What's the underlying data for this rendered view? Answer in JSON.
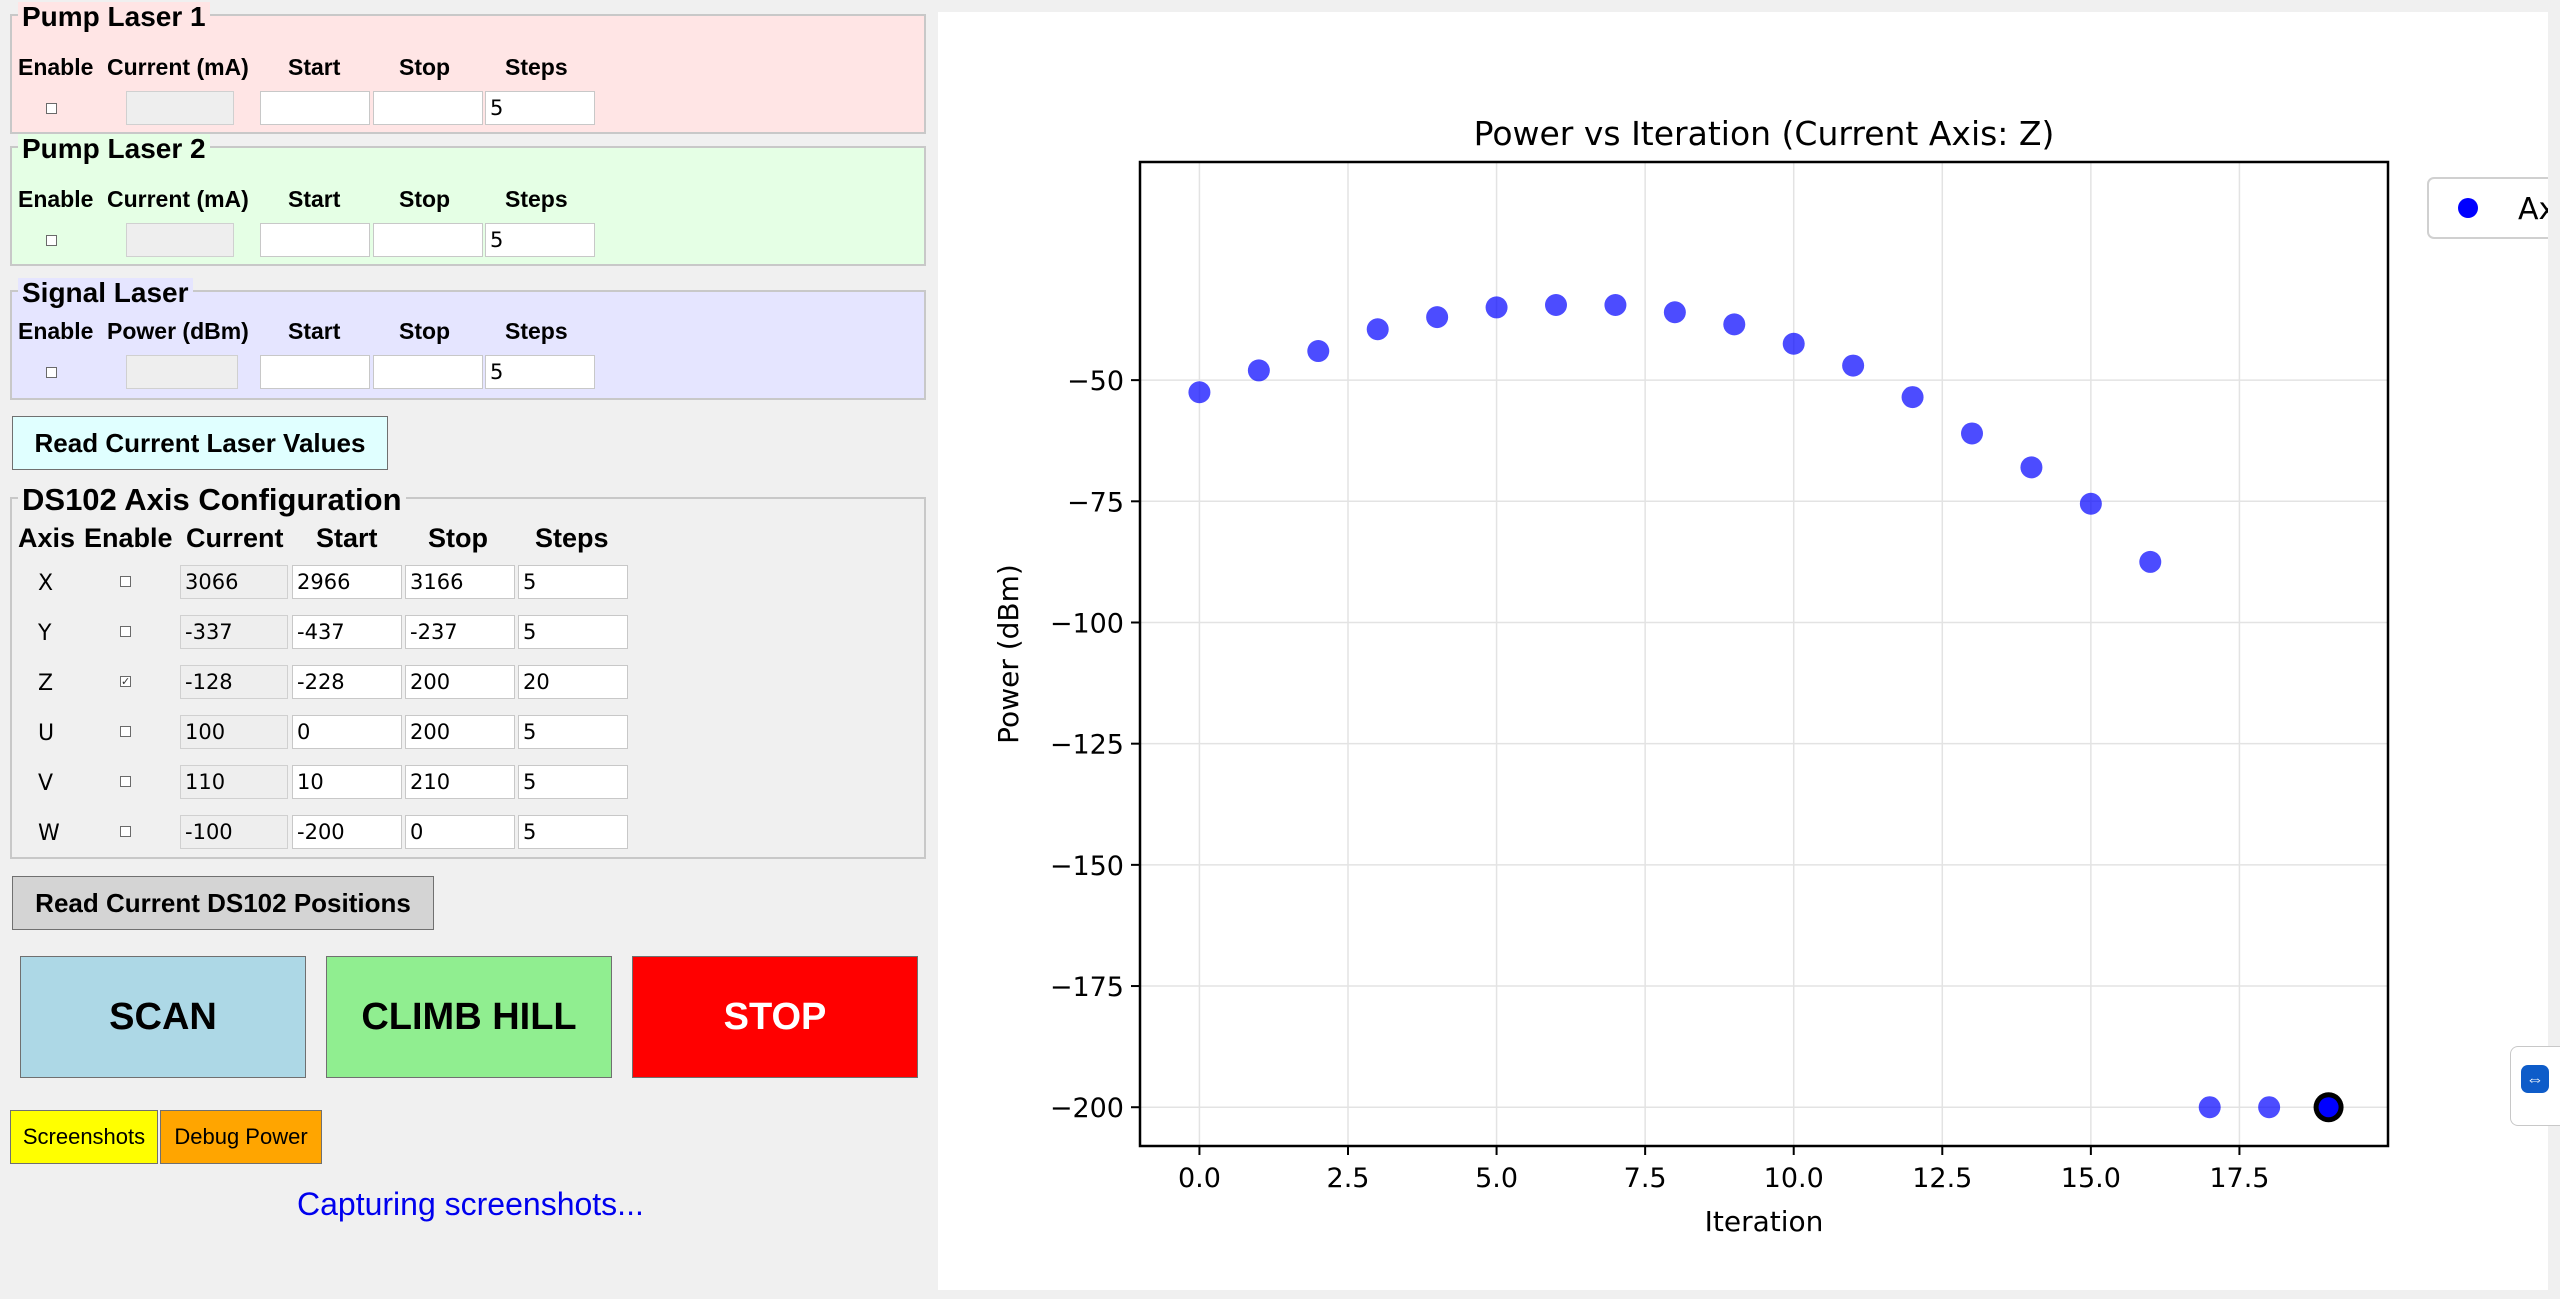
{
  "pump1": {
    "title": "Pump Laser 1",
    "headers": [
      "Enable",
      "Current (mA)",
      "Start",
      "Stop",
      "Steps"
    ],
    "enabled": false,
    "current": "",
    "start": "",
    "stop": "",
    "steps": "5",
    "bg": "#ffe5e5"
  },
  "pump2": {
    "title": "Pump Laser 2",
    "headers": [
      "Enable",
      "Current (mA)",
      "Start",
      "Stop",
      "Steps"
    ],
    "enabled": false,
    "current": "",
    "start": "",
    "stop": "",
    "steps": "5",
    "bg": "#e5ffe5"
  },
  "signal": {
    "title": "Signal Laser",
    "headers": [
      "Enable",
      "Power (dBm)",
      "Start",
      "Stop",
      "Steps"
    ],
    "enabled": false,
    "current": "",
    "start": "",
    "stop": "",
    "steps": "5",
    "bg": "#e5e5ff"
  },
  "read_laser_button": "Read Current Laser Values",
  "ds102": {
    "title": "DS102 Axis Configuration",
    "headers": [
      "Axis",
      "Enable",
      "Current",
      "Start",
      "Stop",
      "Steps"
    ],
    "rows": [
      {
        "axis": "X",
        "enabled": false,
        "current": "3066",
        "start": "2966",
        "stop": "3166",
        "steps": "5"
      },
      {
        "axis": "Y",
        "enabled": false,
        "current": "-337",
        "start": "-437",
        "stop": "-237",
        "steps": "5"
      },
      {
        "axis": "Z",
        "enabled": true,
        "current": "-128",
        "start": "-228",
        "stop": "200",
        "steps": "20"
      },
      {
        "axis": "U",
        "enabled": false,
        "current": "100",
        "start": "0",
        "stop": "200",
        "steps": "5"
      },
      {
        "axis": "V",
        "enabled": false,
        "current": "110",
        "start": "10",
        "stop": "210",
        "steps": "5"
      },
      {
        "axis": "W",
        "enabled": false,
        "current": "-100",
        "start": "-200",
        "stop": "0",
        "steps": "5"
      }
    ]
  },
  "read_ds102_button": "Read Current DS102 Positions",
  "buttons": {
    "scan": "SCAN",
    "climb": "CLIMB HILL",
    "stop": "STOP",
    "screenshots": "Screenshots",
    "debug_power": "Debug Power"
  },
  "colors": {
    "scan_bg": "#add8e6",
    "climb_bg": "#90ee90",
    "stop_bg": "#ff0000",
    "screenshots_bg": "#ffff00",
    "debug_bg": "#ffa500",
    "read_laser_bg": "#e0ffff",
    "status_text": "#0000ee",
    "marker": "#0000ff"
  },
  "status_text": "Capturing screenshots...",
  "side_tab_icon": "teamviewer-icon",
  "chart_data": {
    "type": "scatter",
    "title": "Power vs Iteration (Current Axis: Z)",
    "xlabel": "Iteration",
    "ylabel": "Power (dBm)",
    "xlim": [
      -1,
      20
    ],
    "ylim": [
      -208,
      -5
    ],
    "xticks": [
      0.0,
      2.5,
      5.0,
      7.5,
      10.0,
      12.5,
      15.0,
      17.5
    ],
    "xtick_labels": [
      "0.0",
      "2.5",
      "5.0",
      "7.5",
      "10.0",
      "12.5",
      "15.0",
      "17.5"
    ],
    "yticks": [
      -50,
      -75,
      -100,
      -125,
      -150,
      -175,
      -200
    ],
    "ytick_labels": [
      "−50",
      "−75",
      "−100",
      "−125",
      "−150",
      "−175",
      "−200"
    ],
    "grid": true,
    "legend": {
      "placement": "right, outside, cut off",
      "label": "Ax"
    },
    "series": [
      {
        "name": "Ax",
        "x": [
          0,
          1,
          2,
          3,
          4,
          5,
          6,
          7,
          8,
          9,
          10,
          11,
          12,
          13,
          14,
          15,
          16,
          17,
          18
        ],
        "y": [
          -52.5,
          -48,
          -44,
          -39.5,
          -37,
          -35,
          -34.5,
          -34.5,
          -36,
          -38.5,
          -42.5,
          -47,
          -53.5,
          -61,
          -68,
          -75.5,
          -87.5,
          -200,
          -200
        ]
      }
    ],
    "current_point": {
      "x": 19,
      "y": -200
    }
  }
}
